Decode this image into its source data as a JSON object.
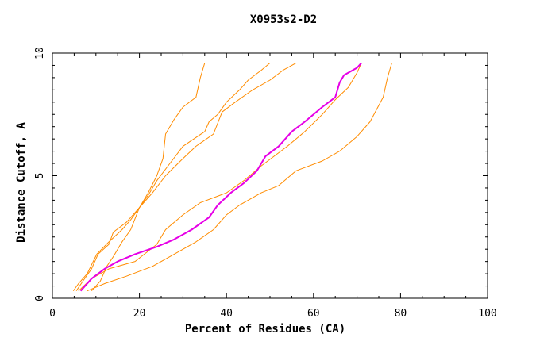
{
  "chart_data": {
    "type": "line",
    "title": "X0953s2-D2",
    "xlabel": "Percent of Residues (CA)",
    "ylabel": "Distance Cutoff, A",
    "xlim": [
      0,
      100
    ],
    "ylim": [
      0,
      10
    ],
    "x_ticks": [
      0,
      20,
      40,
      60,
      80,
      100
    ],
    "x_tick_labels": [
      "0",
      "20",
      "40",
      "60",
      "80",
      "100"
    ],
    "y_ticks": [
      0,
      5,
      10
    ],
    "y_tick_labels": [
      "0",
      "5",
      "10"
    ],
    "colors": {
      "reference": "#ff8c00",
      "highlight": "#e600e6",
      "frame": "#000000"
    },
    "series": [
      {
        "role": "reference",
        "color": "#ff8c00",
        "points": [
          [
            4.8,
            0.3
          ],
          [
            6,
            0.6
          ],
          [
            8,
            1.0
          ],
          [
            10.2,
            1.8
          ],
          [
            13,
            2.3
          ],
          [
            16,
            2.8
          ],
          [
            18,
            3.2
          ],
          [
            20,
            3.7
          ],
          [
            22,
            4.3
          ],
          [
            24,
            5.0
          ],
          [
            25.4,
            5.7
          ],
          [
            26,
            6.7
          ],
          [
            28,
            7.3
          ],
          [
            30,
            7.8
          ],
          [
            33,
            8.2
          ],
          [
            34,
            9.0
          ],
          [
            35,
            9.6
          ]
        ]
      },
      {
        "role": "reference",
        "color": "#ff8c00",
        "points": [
          [
            5.5,
            0.3
          ],
          [
            7,
            0.7
          ],
          [
            9,
            1.2
          ],
          [
            10.5,
            1.8
          ],
          [
            13,
            2.2
          ],
          [
            14,
            2.7
          ],
          [
            17,
            3.1
          ],
          [
            20,
            3.7
          ],
          [
            22,
            4.2
          ],
          [
            24,
            4.8
          ],
          [
            27,
            5.5
          ],
          [
            30,
            6.2
          ],
          [
            35,
            6.8
          ],
          [
            36,
            7.2
          ],
          [
            38,
            7.5
          ],
          [
            40,
            8.0
          ],
          [
            43,
            8.5
          ],
          [
            45,
            8.9
          ],
          [
            48,
            9.3
          ],
          [
            50,
            9.6
          ]
        ]
      },
      {
        "role": "reference",
        "color": "#ff8c00",
        "points": [
          [
            9,
            0.3
          ],
          [
            11,
            0.7
          ],
          [
            12.5,
            1.3
          ],
          [
            14,
            1.7
          ],
          [
            16,
            2.3
          ],
          [
            18,
            2.8
          ],
          [
            20,
            3.7
          ],
          [
            23,
            4.3
          ],
          [
            26,
            5.0
          ],
          [
            30,
            5.7
          ],
          [
            33,
            6.2
          ],
          [
            37,
            6.7
          ],
          [
            39,
            7.6
          ],
          [
            42,
            8.0
          ],
          [
            46,
            8.5
          ],
          [
            50,
            8.9
          ],
          [
            53,
            9.3
          ],
          [
            56,
            9.6
          ]
        ]
      },
      {
        "role": "reference",
        "color": "#ff8c00",
        "points": [
          [
            8,
            0.3
          ],
          [
            12,
            0.6
          ],
          [
            17,
            0.9
          ],
          [
            23,
            1.3
          ],
          [
            28,
            1.8
          ],
          [
            33,
            2.3
          ],
          [
            37,
            2.8
          ],
          [
            40,
            3.4
          ],
          [
            43,
            3.8
          ],
          [
            48,
            4.3
          ],
          [
            52,
            4.6
          ],
          [
            56,
            5.2
          ],
          [
            62,
            5.6
          ],
          [
            66,
            6.0
          ],
          [
            70,
            6.6
          ],
          [
            73,
            7.2
          ],
          [
            76,
            8.2
          ],
          [
            77,
            9.0
          ],
          [
            78,
            9.6
          ]
        ]
      },
      {
        "role": "reference",
        "color": "#ff8c00",
        "points": [
          [
            6,
            0.3
          ],
          [
            9,
            0.8
          ],
          [
            13,
            1.2
          ],
          [
            19,
            1.5
          ],
          [
            24,
            2.2
          ],
          [
            26,
            2.8
          ],
          [
            30,
            3.4
          ],
          [
            34,
            3.9
          ],
          [
            40,
            4.3
          ],
          [
            44,
            4.8
          ],
          [
            48,
            5.4
          ],
          [
            54,
            6.2
          ],
          [
            58,
            6.8
          ],
          [
            62,
            7.5
          ],
          [
            65,
            8.1
          ],
          [
            68,
            8.6
          ],
          [
            70,
            9.2
          ],
          [
            71,
            9.6
          ]
        ]
      },
      {
        "role": "highlight",
        "color": "#e600e6",
        "points": [
          [
            6.5,
            0.3
          ],
          [
            9,
            0.8
          ],
          [
            12,
            1.2
          ],
          [
            15,
            1.5
          ],
          [
            19,
            1.8
          ],
          [
            24,
            2.1
          ],
          [
            28,
            2.4
          ],
          [
            32,
            2.8
          ],
          [
            36,
            3.3
          ],
          [
            38,
            3.8
          ],
          [
            41,
            4.3
          ],
          [
            44,
            4.7
          ],
          [
            47,
            5.2
          ],
          [
            49,
            5.8
          ],
          [
            52,
            6.2
          ],
          [
            55,
            6.8
          ],
          [
            58,
            7.2
          ],
          [
            62,
            7.8
          ],
          [
            65,
            8.2
          ],
          [
            66,
            8.8
          ],
          [
            67,
            9.1
          ],
          [
            70,
            9.4
          ],
          [
            71,
            9.6
          ]
        ]
      }
    ]
  }
}
